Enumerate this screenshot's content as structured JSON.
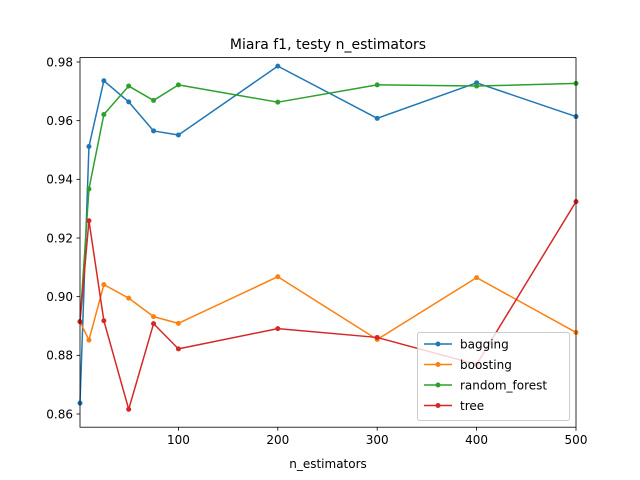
{
  "chart_data": {
    "type": "line",
    "title": "Miara f1, testy n_estimators",
    "xlabel": "n_estimators",
    "ylabel": "",
    "xlim": [
      1,
      500
    ],
    "ylim": [
      0.8555,
      0.9815
    ],
    "x_ticks": [
      100,
      200,
      300,
      400,
      500
    ],
    "y_ticks": [
      0.86,
      0.88,
      0.9,
      0.92,
      0.94,
      0.96,
      0.98
    ],
    "x_tick_labels": [
      "100",
      "200",
      "300",
      "400",
      "500"
    ],
    "y_tick_labels": [
      "0.86",
      "0.88",
      "0.90",
      "0.92",
      "0.94",
      "0.96",
      "0.98"
    ],
    "legend_position": "lower-right",
    "x": [
      1,
      10,
      25,
      50,
      75,
      100,
      200,
      300,
      400,
      500
    ],
    "series": [
      {
        "name": "bagging",
        "color": "#1f77b4",
        "values": [
          0.8637,
          0.9512,
          0.9736,
          0.9664,
          0.9565,
          0.9551,
          0.9786,
          0.9608,
          0.9729,
          0.9614
        ]
      },
      {
        "name": "boosting",
        "color": "#ff7f0e",
        "values": [
          0.8915,
          0.8852,
          0.9041,
          0.8995,
          0.8932,
          0.8909,
          0.9068,
          0.8854,
          0.9065,
          0.8878
        ]
      },
      {
        "name": "random_forest",
        "color": "#2ca02c",
        "values": [
          0.8915,
          0.9367,
          0.9621,
          0.9718,
          0.9669,
          0.9722,
          0.9663,
          0.9722,
          0.9718,
          0.9727
        ]
      },
      {
        "name": "tree",
        "color": "#d62728",
        "values": [
          0.8915,
          0.9259,
          0.8918,
          0.8616,
          0.8908,
          0.8822,
          0.8891,
          0.8861,
          0.8769,
          0.9324
        ]
      }
    ]
  }
}
